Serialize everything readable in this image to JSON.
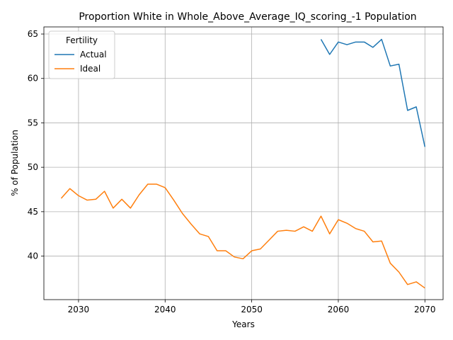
{
  "chart_data": {
    "type": "line",
    "title": "Proportion White in Whole_Above_Average_IQ_scoring_-1 Population",
    "xlabel": "Years",
    "ylabel": "% of Population",
    "xlim": [
      2026.0,
      2072.1
    ],
    "ylim": [
      35.1,
      65.8
    ],
    "xticks": [
      2030,
      2040,
      2050,
      2060,
      2070
    ],
    "yticks": [
      40,
      45,
      50,
      55,
      60,
      65
    ],
    "grid": true,
    "legend": {
      "title": "Fertility",
      "position": "top-left"
    },
    "series": [
      {
        "name": "Actual",
        "color": "#1f77b4",
        "x": [
          2058,
          2059,
          2060,
          2061,
          2062,
          2063,
          2064,
          2065,
          2066,
          2067,
          2068,
          2069,
          2070
        ],
        "y": [
          64.4,
          62.7,
          64.1,
          63.8,
          64.1,
          64.1,
          63.5,
          64.4,
          61.4,
          61.6,
          56.4,
          56.8,
          52.3
        ]
      },
      {
        "name": "Ideal",
        "color": "#ff7f0e",
        "x": [
          2028,
          2029,
          2030,
          2031,
          2032,
          2033,
          2034,
          2035,
          2036,
          2037,
          2038,
          2039,
          2040,
          2041,
          2042,
          2043,
          2044,
          2045,
          2046,
          2047,
          2048,
          2049,
          2050,
          2051,
          2052,
          2053,
          2054,
          2055,
          2056,
          2057,
          2058,
          2059,
          2060,
          2061,
          2062,
          2063,
          2064,
          2065,
          2066,
          2067,
          2068,
          2069,
          2070
        ],
        "y": [
          46.5,
          47.6,
          46.8,
          46.3,
          46.4,
          47.3,
          45.4,
          46.4,
          45.4,
          46.9,
          48.1,
          48.1,
          47.7,
          46.3,
          44.8,
          43.6,
          42.5,
          42.2,
          40.6,
          40.6,
          39.9,
          39.7,
          40.6,
          40.8,
          41.8,
          42.8,
          42.9,
          42.8,
          43.3,
          42.8,
          44.5,
          42.5,
          44.1,
          43.7,
          43.1,
          42.8,
          41.6,
          41.7,
          39.2,
          38.2,
          36.8,
          37.1,
          36.4
        ]
      }
    ]
  }
}
